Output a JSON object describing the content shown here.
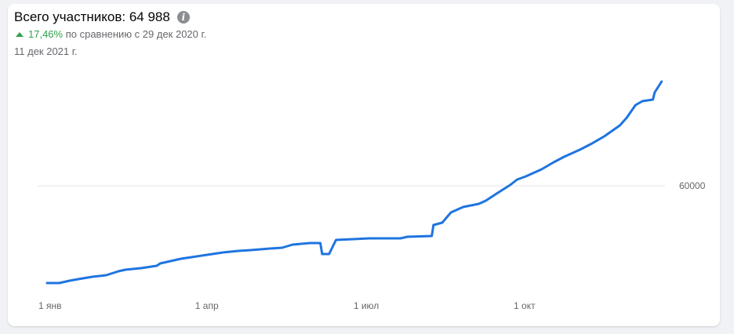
{
  "header": {
    "title": "Всего участников: 64 988",
    "info_icon": "info-icon",
    "change_percent": "17,46%",
    "change_text": "по сравнению с 29 дек 2020 г.",
    "change_direction": "up",
    "date": "11 дек 2021 г."
  },
  "colors": {
    "line": "#1f74e0",
    "positive": "#31a24c",
    "grid": "#e4e6eb"
  },
  "chart_data": {
    "type": "line",
    "title": "",
    "xlabel": "",
    "ylabel": "",
    "grid": true,
    "y_axis_position": "right",
    "ylim": [
      54500,
      65500
    ],
    "y_ticks": [
      {
        "value": 60000,
        "label": "60000"
      }
    ],
    "x_ticks": [
      {
        "date": "2021-01-01",
        "label": "1 янв"
      },
      {
        "date": "2021-04-01",
        "label": "1 апр"
      },
      {
        "date": "2021-07-01",
        "label": "1 июл"
      },
      {
        "date": "2021-10-01",
        "label": "1 окт"
      }
    ],
    "series": [
      {
        "points": [
          [
            "2021-01-01",
            55350
          ],
          [
            "2021-01-08",
            55350
          ],
          [
            "2021-01-14",
            55463
          ],
          [
            "2021-01-19",
            55538
          ],
          [
            "2021-01-27",
            55650
          ],
          [
            "2021-02-04",
            55725
          ],
          [
            "2021-02-11",
            55913
          ],
          [
            "2021-02-15",
            55988
          ],
          [
            "2021-02-24",
            56063
          ],
          [
            "2021-03-05",
            56175
          ],
          [
            "2021-03-07",
            56288
          ],
          [
            "2021-03-19",
            56513
          ],
          [
            "2021-03-25",
            56588
          ],
          [
            "2021-04-03",
            56700
          ],
          [
            "2021-04-12",
            56813
          ],
          [
            "2021-04-21",
            56888
          ],
          [
            "2021-04-28",
            56925
          ],
          [
            "2021-05-09",
            57000
          ],
          [
            "2021-05-16",
            57038
          ],
          [
            "2021-05-22",
            57188
          ],
          [
            "2021-06-01",
            57263
          ],
          [
            "2021-06-07",
            57263
          ],
          [
            "2021-06-08",
            56738
          ],
          [
            "2021-06-12",
            56738
          ],
          [
            "2021-06-16",
            57413
          ],
          [
            "2021-06-26",
            57450
          ],
          [
            "2021-07-05",
            57488
          ],
          [
            "2021-07-23",
            57488
          ],
          [
            "2021-07-27",
            57563
          ],
          [
            "2021-08-10",
            57600
          ],
          [
            "2021-08-11",
            58125
          ],
          [
            "2021-08-16",
            58238
          ],
          [
            "2021-08-21",
            58725
          ],
          [
            "2021-08-28",
            58988
          ],
          [
            "2021-09-06",
            59138
          ],
          [
            "2021-09-10",
            59288
          ],
          [
            "2021-09-19",
            59775
          ],
          [
            "2021-09-24",
            60038
          ],
          [
            "2021-09-28",
            60300
          ],
          [
            "2021-10-03",
            60450
          ],
          [
            "2021-10-12",
            60788
          ],
          [
            "2021-10-19",
            61125
          ],
          [
            "2021-10-25",
            61388
          ],
          [
            "2021-11-03",
            61725
          ],
          [
            "2021-11-10",
            62025
          ],
          [
            "2021-11-17",
            62363
          ],
          [
            "2021-11-26",
            62888
          ],
          [
            "2021-11-30",
            63263
          ],
          [
            "2021-12-05",
            63863
          ],
          [
            "2021-12-09",
            64050
          ],
          [
            "2021-12-15",
            64125
          ],
          [
            "2021-12-16",
            64463
          ],
          [
            "2021-12-20",
            64988
          ]
        ]
      }
    ]
  }
}
